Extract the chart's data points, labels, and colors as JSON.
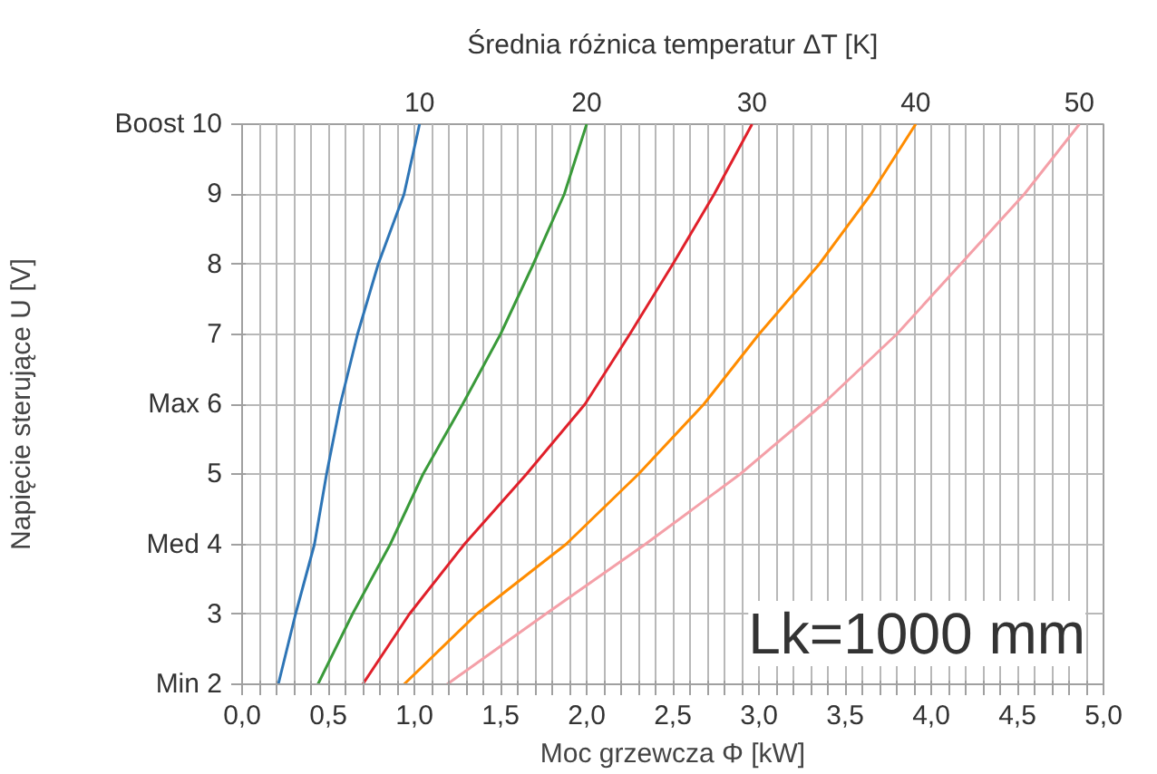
{
  "chart_data": {
    "type": "line",
    "xlabel": "Moc grzewcza Φ [kW]",
    "ylabel": "Napięcie sterujące U [V]",
    "legend_title": "Średnia różnica temperatur ΔT [K]",
    "xlim": [
      0,
      5
    ],
    "ylim": [
      2,
      10
    ],
    "xticks": [
      {
        "value": 0,
        "label": "0,0"
      },
      {
        "value": 0.1,
        "label": null
      },
      {
        "value": 0.2,
        "label": null
      },
      {
        "value": 0.3,
        "label": null
      },
      {
        "value": 0.4,
        "label": null
      },
      {
        "value": 0.5,
        "label": "0,5"
      },
      {
        "value": 0.6,
        "label": null
      },
      {
        "value": 0.7,
        "label": null
      },
      {
        "value": 0.8,
        "label": null
      },
      {
        "value": 0.9,
        "label": null
      },
      {
        "value": 1,
        "label": "1,0"
      },
      {
        "value": 1.1,
        "label": null
      },
      {
        "value": 1.2,
        "label": null
      },
      {
        "value": 1.3,
        "label": null
      },
      {
        "value": 1.4,
        "label": null
      },
      {
        "value": 1.5,
        "label": "1,5"
      },
      {
        "value": 1.6,
        "label": null
      },
      {
        "value": 1.7,
        "label": null
      },
      {
        "value": 1.8,
        "label": null
      },
      {
        "value": 1.9,
        "label": null
      },
      {
        "value": 2,
        "label": "2,0"
      },
      {
        "value": 2.1,
        "label": null
      },
      {
        "value": 2.2,
        "label": null
      },
      {
        "value": 2.3,
        "label": null
      },
      {
        "value": 2.4,
        "label": null
      },
      {
        "value": 2.5,
        "label": "2,5"
      },
      {
        "value": 2.6,
        "label": null
      },
      {
        "value": 2.7,
        "label": null
      },
      {
        "value": 2.8,
        "label": null
      },
      {
        "value": 2.9,
        "label": null
      },
      {
        "value": 3,
        "label": "3,0"
      },
      {
        "value": 3.1,
        "label": null
      },
      {
        "value": 3.2,
        "label": null
      },
      {
        "value": 3.3,
        "label": null
      },
      {
        "value": 3.4,
        "label": null
      },
      {
        "value": 3.5,
        "label": "3,5"
      },
      {
        "value": 3.6,
        "label": null
      },
      {
        "value": 3.7,
        "label": null
      },
      {
        "value": 3.8,
        "label": null
      },
      {
        "value": 3.9,
        "label": null
      },
      {
        "value": 4,
        "label": "4,0"
      },
      {
        "value": 4.1,
        "label": null
      },
      {
        "value": 4.2,
        "label": null
      },
      {
        "value": 4.3,
        "label": null
      },
      {
        "value": 4.4,
        "label": null
      },
      {
        "value": 4.5,
        "label": "4,5"
      },
      {
        "value": 4.6,
        "label": null
      },
      {
        "value": 4.7,
        "label": null
      },
      {
        "value": 4.8,
        "label": null
      },
      {
        "value": 4.9,
        "label": null
      },
      {
        "value": 5,
        "label": "5,0"
      }
    ],
    "yticks": [
      {
        "value": 2,
        "label": "Min 2"
      },
      3,
      {
        "value": 4,
        "label": "Med 4"
      },
      5,
      {
        "value": 6,
        "label": "Max 6"
      },
      7,
      8,
      9,
      {
        "value": 10,
        "label": "Boost 10"
      }
    ],
    "grid": true,
    "legend": false,
    "annotations": [
      "Lk=1000 mm"
    ],
    "series": [
      {
        "name": "10",
        "color": "#2e75b6",
        "x": [
          0.21,
          0.31,
          0.42,
          0.49,
          0.57,
          0.67,
          0.79,
          0.94,
          1.03
        ],
        "values": [
          2,
          3,
          4,
          5,
          6,
          7,
          8,
          9,
          10
        ]
      },
      {
        "name": "20",
        "color": "#3a9a3a",
        "x": [
          0.44,
          0.64,
          0.86,
          1.05,
          1.28,
          1.5,
          1.69,
          1.87,
          2.0
        ],
        "values": [
          2,
          3,
          4,
          5,
          6,
          7,
          8,
          9,
          10
        ]
      },
      {
        "name": "30",
        "color": "#e0202a",
        "x": [
          0.7,
          0.97,
          1.29,
          1.65,
          1.99,
          2.25,
          2.5,
          2.74,
          2.96
        ],
        "values": [
          2,
          3,
          4,
          5,
          6,
          7,
          8,
          9,
          10
        ]
      },
      {
        "name": "40",
        "color": "#ff8c00",
        "x": [
          0.94,
          1.36,
          1.88,
          2.3,
          2.68,
          3.0,
          3.35,
          3.65,
          3.91
        ],
        "values": [
          2,
          3,
          4,
          5,
          6,
          7,
          8,
          9,
          10
        ]
      },
      {
        "name": "50",
        "color": "#f4a0a8",
        "x": [
          1.19,
          1.76,
          2.34,
          2.89,
          3.37,
          3.8,
          4.17,
          4.54,
          4.86
        ],
        "values": [
          2,
          3,
          4,
          5,
          6,
          7,
          8,
          9,
          10
        ]
      }
    ]
  }
}
